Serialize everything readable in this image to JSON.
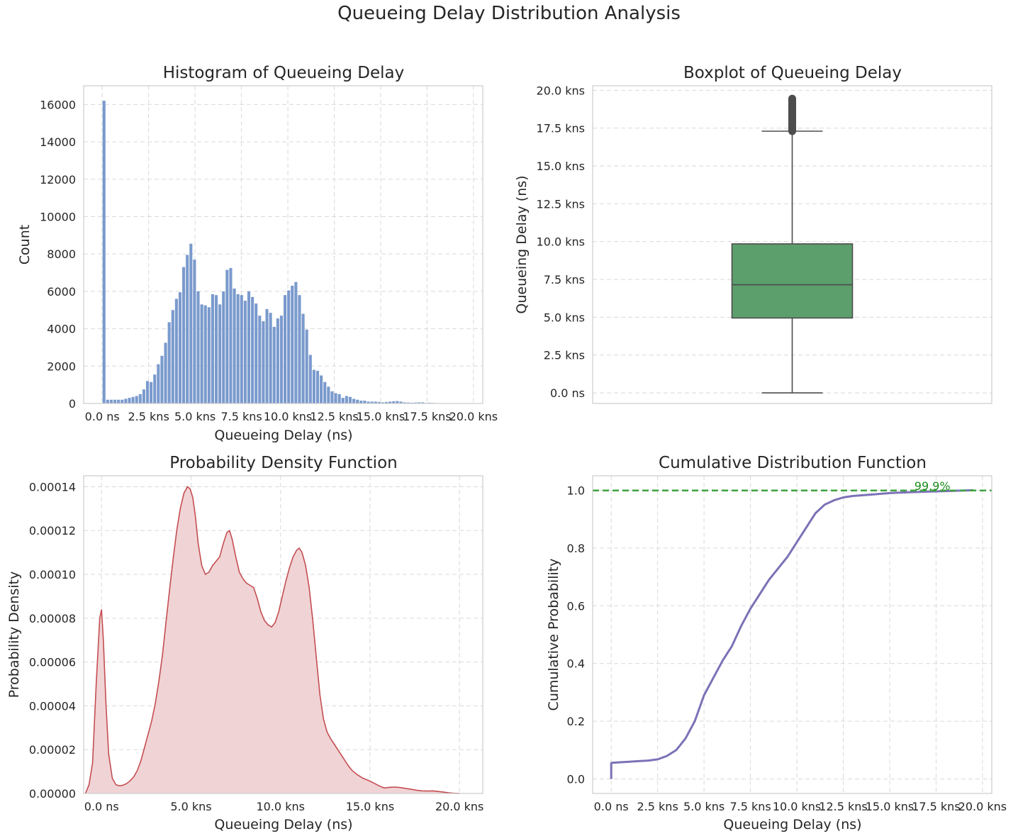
{
  "title": "Queueing Delay Distribution Analysis",
  "colors": {
    "hist": "#7a9acd",
    "box": "#5c9f6c",
    "box_line": "#4d4d4d",
    "kde_line": "#c44e52",
    "kde_fill": "#f0d3d5",
    "cdf_line": "#7a72b6",
    "ref_line": "#3fa23f",
    "ref_text": "#1a8a1a"
  },
  "chart_data": [
    {
      "type": "bar",
      "title": "Histogram of Queueing Delay",
      "xlabel": "Queueing Delay (ns)",
      "ylabel": "Count",
      "xlim": [
        -1000,
        20500
      ],
      "ylim": [
        0,
        17000
      ],
      "xticks": [
        0,
        2500,
        5000,
        7500,
        10000,
        12500,
        15000,
        17500,
        20000
      ],
      "xtick_labels": [
        "0.0 ns",
        "2.5 kns",
        "5.0 kns",
        "7.5 kns",
        "10.0 kns",
        "12.5 kns",
        "15.0 kns",
        "17.5 kns",
        "20.0 kns"
      ],
      "yticks": [
        0,
        2000,
        4000,
        6000,
        8000,
        10000,
        12000,
        14000,
        16000
      ],
      "ytick_labels": [
        "0",
        "2000",
        "4000",
        "6000",
        "8000",
        "10000",
        "12000",
        "14000",
        "16000"
      ],
      "grid": true,
      "bin_start": 0,
      "bin_width": 195,
      "values": [
        16200,
        200,
        200,
        200,
        200,
        200,
        250,
        300,
        350,
        400,
        500,
        750,
        1200,
        1150,
        1550,
        2100,
        2550,
        3250,
        4350,
        5000,
        5600,
        5950,
        7300,
        7950,
        8550,
        7700,
        6000,
        5300,
        5250,
        5150,
        5850,
        5800,
        5300,
        6000,
        7150,
        7250,
        6150,
        5850,
        5800,
        5500,
        6000,
        5700,
        5350,
        4700,
        4400,
        5050,
        4850,
        4100,
        4550,
        4700,
        5800,
        6050,
        6300,
        6500,
        5800,
        4800,
        3950,
        2600,
        1800,
        1750,
        1500,
        1150,
        900,
        650,
        550,
        500,
        300,
        400,
        350,
        250,
        200,
        150,
        150,
        100,
        100,
        100,
        80,
        60,
        80,
        100,
        120,
        130,
        100,
        60,
        50,
        40,
        50,
        60,
        60,
        30,
        40,
        30,
        20
      ]
    },
    {
      "type": "box",
      "title": "Boxplot of Queueing Delay",
      "ylabel": "Queueing Delay (ns)",
      "ylim": [
        -700,
        20300
      ],
      "yticks": [
        0,
        2500,
        5000,
        7500,
        10000,
        12500,
        15000,
        17500,
        20000
      ],
      "ytick_labels": [
        "0.0 ns",
        "2.5 kns",
        "5.0 kns",
        "7.5 kns",
        "10.0 kns",
        "12.5 kns",
        "15.0 kns",
        "17.5 kns",
        "20.0 kns"
      ],
      "grid": true,
      "min": 0,
      "q1": 4950,
      "median": 7150,
      "q3": 9850,
      "whisker_high": 17300,
      "outliers_low": 17300,
      "outliers_high": 19450
    },
    {
      "type": "area",
      "title": "Probability Density Function",
      "xlabel": "Queueing Delay (ns)",
      "ylabel": "Probability Density",
      "xlim": [
        -1000,
        21300
      ],
      "ylim": [
        0,
        0.000145
      ],
      "xticks": [
        0,
        5000,
        10000,
        15000,
        20000
      ],
      "xtick_labels": [
        "0.0 ns",
        "5.0 kns",
        "10.0 kns",
        "15.0 kns",
        "20.0 kns"
      ],
      "yticks": [
        0,
        2e-05,
        4e-05,
        6e-05,
        8e-05,
        0.0001,
        0.00012,
        0.00014
      ],
      "ytick_labels": [
        "0.00000",
        "0.00002",
        "0.00004",
        "0.00006",
        "0.00008",
        "0.00010",
        "0.00012",
        "0.00014"
      ],
      "grid": true,
      "x": [
        -900,
        -700,
        -500,
        -300,
        -100,
        0,
        100,
        250,
        400,
        600,
        800,
        1000,
        1200,
        1400,
        1600,
        1800,
        2000,
        2200,
        2500,
        2800,
        3000,
        3200,
        3400,
        3600,
        3800,
        4000,
        4200,
        4400,
        4600,
        4800,
        4950,
        5100,
        5250,
        5400,
        5600,
        5800,
        6000,
        6200,
        6400,
        6600,
        6800,
        7000,
        7150,
        7300,
        7500,
        7700,
        7900,
        8100,
        8300,
        8500,
        8700,
        8900,
        9100,
        9300,
        9500,
        9700,
        9900,
        10100,
        10300,
        10500,
        10700,
        10900,
        11050,
        11200,
        11400,
        11600,
        11800,
        12000,
        12200,
        12400,
        12600,
        12800,
        13000,
        13200,
        13400,
        13600,
        13800,
        14000,
        14300,
        14600,
        14900,
        15200,
        15500,
        15800,
        16100,
        16400,
        16700,
        17000,
        17300,
        17600,
        17900,
        18200,
        18500,
        18800,
        19100,
        19400,
        19700,
        20000
      ],
      "y": [
        0,
        4e-06,
        1.4e-05,
        5e-05,
        8e-05,
        8.4e-05,
        7e-05,
        4e-05,
        1.8e-05,
        7e-06,
        4e-06,
        3.5e-06,
        3.8e-06,
        4.5e-06,
        5.8e-06,
        7.6e-06,
        1.05e-05,
        1.5e-05,
        2.4e-05,
        3.3e-05,
        4.1e-05,
        5.1e-05,
        6.3e-05,
        7.8e-05,
        9.3e-05,
        0.000107,
        0.00012,
        0.00013,
        0.000137,
        0.00014,
        0.000139,
        0.000135,
        0.000126,
        0.000114,
        0.000104,
        0.0001,
        0.000101,
        0.000104,
        0.000106,
        0.000108,
        0.000114,
        0.000119,
        0.00012,
        0.000116,
        0.000108,
        0.000101,
        9.8e-05,
        9.6e-05,
        9.5e-05,
        9.4e-05,
        8.9e-05,
        8.3e-05,
        7.9e-05,
        7.7e-05,
        7.6e-05,
        7.8e-05,
        8.3e-05,
        9e-05,
        9.7e-05,
        0.000103,
        0.000108,
        0.000111,
        0.000112,
        0.00011,
        0.000104,
        9.4e-05,
        7.9e-05,
        6.2e-05,
        4.5e-05,
        3.4e-05,
        2.8e-05,
        2.5e-05,
        2.25e-05,
        2e-05,
        1.75e-05,
        1.5e-05,
        1.25e-05,
        1.05e-05,
        8.5e-06,
        7e-06,
        6e-06,
        4.8e-06,
        3.5e-06,
        2.5e-06,
        2.8e-06,
        2.9e-06,
        2.7e-06,
        2.3e-06,
        1.9e-06,
        1.5e-06,
        1.2e-06,
        1.1e-06,
        1.2e-06,
        9e-07,
        6e-07,
        3e-07,
        1e-07,
        0
      ]
    },
    {
      "type": "line",
      "title": "Cumulative Distribution Function",
      "xlabel": "Queueing Delay (ns)",
      "ylabel": "Cumulative Probability",
      "xlim": [
        -1000,
        20500
      ],
      "ylim": [
        -0.05,
        1.05
      ],
      "xticks": [
        0,
        2500,
        5000,
        7500,
        10000,
        12500,
        15000,
        17500,
        20000
      ],
      "xtick_labels": [
        "0.0 ns",
        "2.5 kns",
        "5.0 kns",
        "7.5 kns",
        "10.0 kns",
        "12.5 kns",
        "15.0 kns",
        "17.5 kns",
        "20.0 kns"
      ],
      "yticks": [
        0,
        0.2,
        0.4,
        0.6,
        0.8,
        1.0
      ],
      "ytick_labels": [
        "0.0",
        "0.2",
        "0.4",
        "0.6",
        "0.8",
        "1.0"
      ],
      "grid": true,
      "x": [
        0,
        0,
        50,
        500,
        1000,
        1500,
        2000,
        2500,
        3000,
        3500,
        4000,
        4500,
        5000,
        5500,
        6000,
        6500,
        7000,
        7500,
        8000,
        8500,
        9000,
        9500,
        10000,
        10500,
        11000,
        11500,
        12000,
        12500,
        13000,
        14000,
        15000,
        16000,
        17000,
        17500,
        18000,
        19000,
        19500
      ],
      "y": [
        0,
        0.055,
        0.056,
        0.058,
        0.06,
        0.062,
        0.064,
        0.068,
        0.08,
        0.1,
        0.14,
        0.2,
        0.29,
        0.35,
        0.41,
        0.46,
        0.53,
        0.59,
        0.64,
        0.69,
        0.73,
        0.77,
        0.82,
        0.87,
        0.92,
        0.95,
        0.965,
        0.975,
        0.98,
        0.985,
        0.99,
        0.993,
        0.995,
        0.996,
        0.997,
        0.999,
        1.0
      ],
      "reference_line": {
        "y": 0.999,
        "label": "99.9%",
        "label_x": 17300
      }
    }
  ]
}
